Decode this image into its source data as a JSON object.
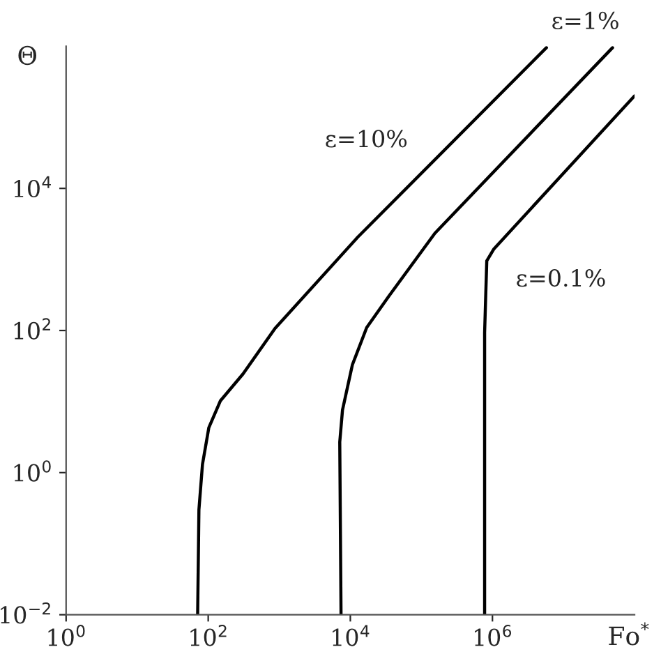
{
  "chart_data": {
    "type": "line",
    "xlabel": "Fo$^{*}$",
    "ylabel": "Θ",
    "log": "xy",
    "grid": false,
    "legend": false,
    "marker": "none",
    "line_style": "solid",
    "xlim": [
      1,
      100000000
    ],
    "ylim": [
      0.01,
      1000000
    ],
    "xticks": [
      {
        "value": 1,
        "label": "10$^{0}$"
      },
      {
        "value": 100,
        "label": "10$^{2}$"
      },
      {
        "value": 10000,
        "label": "10$^{4}$"
      },
      {
        "value": 1000000,
        "label": "10$^{6}$"
      }
    ],
    "yticks": [
      {
        "value": 0.01,
        "label": "10$^{−2}$"
      },
      {
        "value": 1,
        "label": "10$^{0}$"
      },
      {
        "value": 100,
        "label": "10$^{2}$"
      },
      {
        "value": 10000,
        "label": "10$^{4}$"
      }
    ],
    "series": [
      {
        "name": "ε=10%",
        "color": "#000000",
        "x": [
          71,
          74,
          83,
          102,
          148,
          309,
          871,
          12600,
          5750000
        ],
        "values": [
          0.01,
          0.3,
          1.3,
          4.3,
          10.2,
          24.5,
          107,
          2040,
          955000
        ]
      },
      {
        "name": "ε=1%",
        "color": "#000000",
        "x": [
          7400,
          7100,
          7760,
          10700,
          17000,
          34700,
          155000,
          49000000
        ],
        "values": [
          0.01,
          2.7,
          7.6,
          33,
          110,
          302,
          2340,
          955000
        ]
      },
      {
        "name": "ε=0.1%",
        "color": "#000000",
        "x": [
          776000,
          776000,
          832000,
          1050000,
          100000000
        ],
        "values": [
          0.01,
          93,
          955,
          1410,
          200000
        ]
      }
    ]
  }
}
